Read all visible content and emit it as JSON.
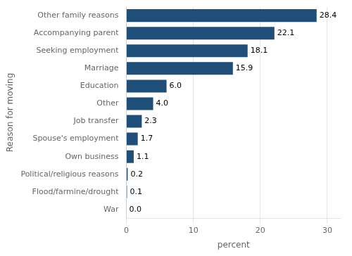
{
  "chart_data": {
    "type": "bar",
    "orientation": "horizontal",
    "xlabel": "percent",
    "ylabel": "Reason for moving",
    "categories": [
      "War",
      "Flood/farmine/drought",
      "Political/religious reasons",
      "Own business",
      "Spouse's employment",
      "Job transfer",
      "Other",
      "Education",
      "Marriage",
      "Seeking employment",
      "Accompanying parent",
      "Other family reasons"
    ],
    "values": [
      0.0,
      0.1,
      0.2,
      1.1,
      1.7,
      2.3,
      4.0,
      6.0,
      15.9,
      18.1,
      22.1,
      28.4
    ],
    "value_labels": [
      "0.0",
      "0.1",
      "0.2",
      "1.1",
      "1.7",
      "2.3",
      "4.0",
      "6.0",
      "15.9",
      "18.1",
      "22.1",
      "28.4"
    ],
    "data_labels": true,
    "color": "#1f4e79",
    "xlim": [
      0,
      32
    ],
    "xticks": [
      0,
      10,
      20,
      30
    ],
    "grid": true
  }
}
